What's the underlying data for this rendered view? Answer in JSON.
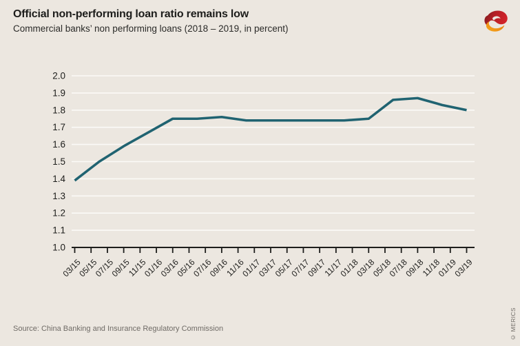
{
  "header": {
    "logo_icon": "merics-logo-icon"
  },
  "chart_data": {
    "type": "line",
    "title": "Official non-performing loan ratio remains low",
    "subtitle": "Commercial banks’ non performing loans (2018 – 2019, in percent)",
    "xlabel": "",
    "ylabel": "",
    "ylim": [
      1.0,
      2.0
    ],
    "y_ticks": [
      1.0,
      1.1,
      1.2,
      1.3,
      1.4,
      1.5,
      1.6,
      1.7,
      1.8,
      1.9,
      2.0
    ],
    "grid": "horizontal",
    "legend": "none",
    "x_tick_labels": [
      "03/15",
      "05/15",
      "07/15",
      "09/15",
      "11/15",
      "01/16",
      "03/16",
      "05/16",
      "07/16",
      "09/16",
      "11/16",
      "01/17",
      "03/17",
      "05/17",
      "07/17",
      "09/17",
      "11/17",
      "01/18",
      "03/18",
      "05/18",
      "07/18",
      "09/18",
      "11/18",
      "01/19",
      "03/19"
    ],
    "x": [
      "03/15",
      "06/15",
      "09/15",
      "12/15",
      "03/16",
      "06/16",
      "09/16",
      "12/16",
      "03/17",
      "06/17",
      "09/17",
      "12/17",
      "03/18",
      "06/18",
      "09/18",
      "12/18",
      "03/19"
    ],
    "series": [
      {
        "name": "Commercial banks' non-performing loan ratio",
        "values": [
          1.39,
          1.5,
          1.59,
          1.67,
          1.75,
          1.75,
          1.76,
          1.74,
          1.74,
          1.74,
          1.74,
          1.74,
          1.75,
          1.86,
          1.87,
          1.83,
          1.8
        ]
      }
    ],
    "colors": {
      "line": "#206371",
      "grid": "#fbfaf7",
      "axis": "#1d1d1b",
      "text": "#1d1d1b",
      "background": "#ece7e0"
    }
  },
  "logo_colors": {
    "dark_red": "#781b1e",
    "red": "#d2232a",
    "orange_dark": "#e8740f",
    "orange_light": "#f5a81c"
  },
  "footer": {
    "source": "Source: China Banking and Insurance Regulatory Commission",
    "copyright": "© MERICS"
  }
}
